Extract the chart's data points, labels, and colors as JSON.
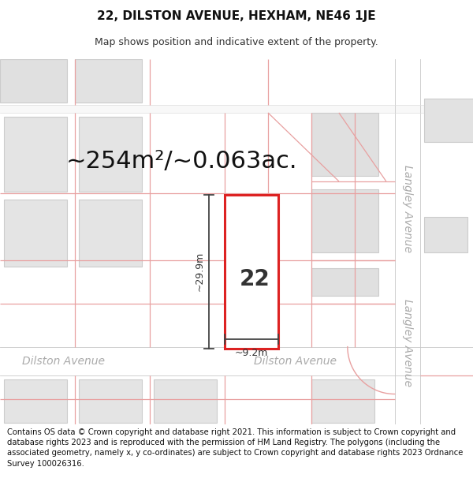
{
  "title_line1": "22, DILSTON AVENUE, HEXHAM, NE46 1JE",
  "title_line2": "Map shows position and indicative extent of the property.",
  "area_label": "~254m²/~0.063ac.",
  "property_number": "22",
  "width_label": "~9.2m",
  "height_label": "~29.9m",
  "street_left": "Dilston Avenue",
  "street_center": "Dilston Avenue",
  "street_langley_top": "Langley Avenue",
  "street_langley_bot": "Langley Avenue",
  "footer_text": "Contains OS data © Crown copyright and database right 2021. This information is subject to Crown copyright and database rights 2023 and is reproduced with the permission of HM Land Registry. The polygons (including the associated geometry, namely x, y co-ordinates) are subject to Crown copyright and database rights 2023 Ordnance Survey 100026316.",
  "map_bg": "#eeecec",
  "road_fill": "#ffffff",
  "road_edge": "#d0d0d0",
  "block_fill": "#dcdcdc",
  "block_edge": "#cccccc",
  "red_plot": "#dd2222",
  "red_bg": "#e8a0a0",
  "dim_color": "#444444",
  "street_color": "#aaaaaa",
  "title_fs": 11,
  "subtitle_fs": 9,
  "area_fs": 22,
  "num_fs": 20,
  "dim_fs": 9,
  "street_fs": 10,
  "footer_fs": 7.2
}
